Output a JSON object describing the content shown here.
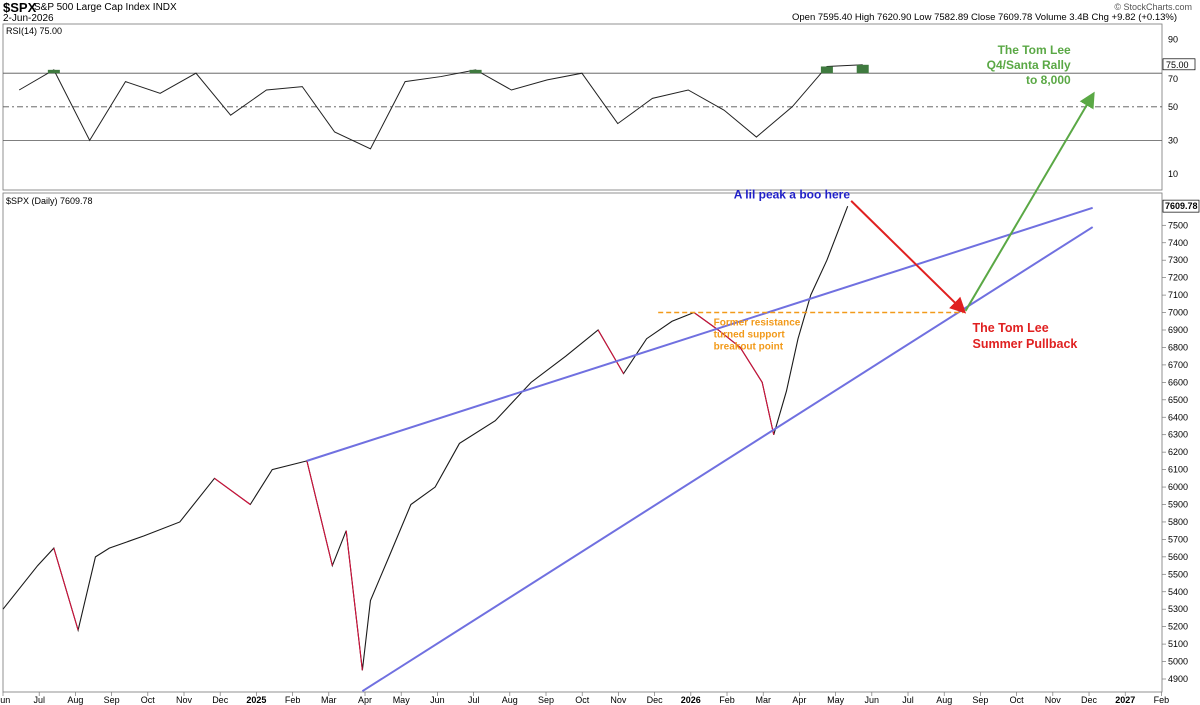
{
  "header": {
    "symbol": "$SPX",
    "name": "S&P 500 Large Cap Index",
    "exchange": "INDX",
    "date": "2-Jun-2026",
    "ohlc_text": "Open 7595.40  High 7620.90  Low 7582.89  Close 7609.78  Volume 3.4B  Chg +9.82 (+0.13%)",
    "brand": "© StockCharts.com"
  },
  "chart_data": [
    {
      "type": "line",
      "panel": "rsi",
      "label": "RSI(14) 75.00",
      "ylim": [
        0,
        100
      ],
      "yticks": [
        10,
        30,
        50,
        70,
        90
      ],
      "reference_lines": [
        30,
        50,
        70
      ],
      "last_value_label": "75.00",
      "series": [
        {
          "name": "RSI(14)",
          "x": [
            "2024-06",
            "2024-07",
            "2024-08",
            "2024-09",
            "2024-10",
            "2024-11",
            "2024-12",
            "2025-01",
            "2025-02",
            "2025-03",
            "2025-04",
            "2025-05",
            "2025-06",
            "2025-07",
            "2025-08",
            "2025-09",
            "2025-10",
            "2025-11",
            "2025-12",
            "2026-01",
            "2026-02",
            "2026-03",
            "2026-04",
            "2026-05",
            "2026-06"
          ],
          "values": [
            60,
            72,
            30,
            65,
            58,
            70,
            45,
            60,
            62,
            35,
            25,
            65,
            68,
            72,
            60,
            66,
            70,
            40,
            55,
            60,
            48,
            32,
            50,
            74,
            75
          ]
        }
      ]
    },
    {
      "type": "line",
      "panel": "price",
      "label": "$SPX (Daily) 7609.78",
      "last_value_label": "7609.78",
      "ylim": [
        4850,
        7700
      ],
      "yticks": [
        4900,
        5000,
        5100,
        5200,
        5300,
        5400,
        5500,
        5600,
        5700,
        5800,
        5900,
        6000,
        6100,
        6200,
        6300,
        6400,
        6500,
        6600,
        6700,
        6800,
        6900,
        7000,
        7100,
        7200,
        7300,
        7400,
        7500
      ],
      "xticks": [
        "Jun",
        "Jul",
        "Aug",
        "Sep",
        "Oct",
        "Nov",
        "Dec",
        "2025",
        "Feb",
        "Mar",
        "Apr",
        "May",
        "Jun",
        "Jul",
        "Aug",
        "Sep",
        "Oct",
        "Nov",
        "Dec",
        "2026",
        "Feb",
        "Mar",
        "Apr",
        "May",
        "Jun",
        "Jul",
        "Aug",
        "Sep",
        "Oct",
        "Nov",
        "Dec",
        "2027",
        "Feb"
      ],
      "series": [
        {
          "name": "$SPX",
          "x": [
            "2024-06-01",
            "2024-07-01",
            "2024-07-15",
            "2024-08-05",
            "2024-08-20",
            "2024-09-01",
            "2024-10-01",
            "2024-11-01",
            "2024-12-01",
            "2025-01-01",
            "2025-01-20",
            "2025-02-19",
            "2025-03-13",
            "2025-03-25",
            "2025-04-08",
            "2025-04-15",
            "2025-05-01",
            "2025-05-20",
            "2025-06-10",
            "2025-07-01",
            "2025-08-01",
            "2025-09-01",
            "2025-10-01",
            "2025-10-29",
            "2025-11-20",
            "2025-12-10",
            "2026-01-01",
            "2026-01-20",
            "2026-02-10",
            "2026-03-01",
            "2026-03-20",
            "2026-03-30",
            "2026-04-10",
            "2026-04-20",
            "2026-05-01",
            "2026-05-15",
            "2026-06-02"
          ],
          "values": [
            5300,
            5550,
            5650,
            5180,
            5600,
            5650,
            5720,
            5800,
            6050,
            5900,
            6100,
            6150,
            5550,
            5750,
            4950,
            5350,
            5600,
            5900,
            6000,
            6250,
            6380,
            6600,
            6750,
            6900,
            6650,
            6850,
            6950,
            7000,
            6900,
            6800,
            6600,
            6300,
            6550,
            6850,
            7100,
            7300,
            7609.78
          ]
        }
      ]
    }
  ],
  "annotations": {
    "peak": "A lil peak a boo here",
    "pullback": [
      "The Tom Lee",
      "Summer Pullback"
    ],
    "rally": [
      "The Tom Lee",
      "Q4/Santa Rally",
      "to 8,000"
    ],
    "support": [
      "Former resistance",
      "turned support",
      "breakout point"
    ]
  },
  "colors": {
    "channel": "#7070e0",
    "up_bar": "#000000",
    "down_bar": "#d0103a",
    "red_arrow": "#e02020",
    "green_arrow": "#5aa845",
    "support": "#f29a1a",
    "peak_text": "#1f1fc8",
    "rsi_fill": "#3f7a3f"
  }
}
